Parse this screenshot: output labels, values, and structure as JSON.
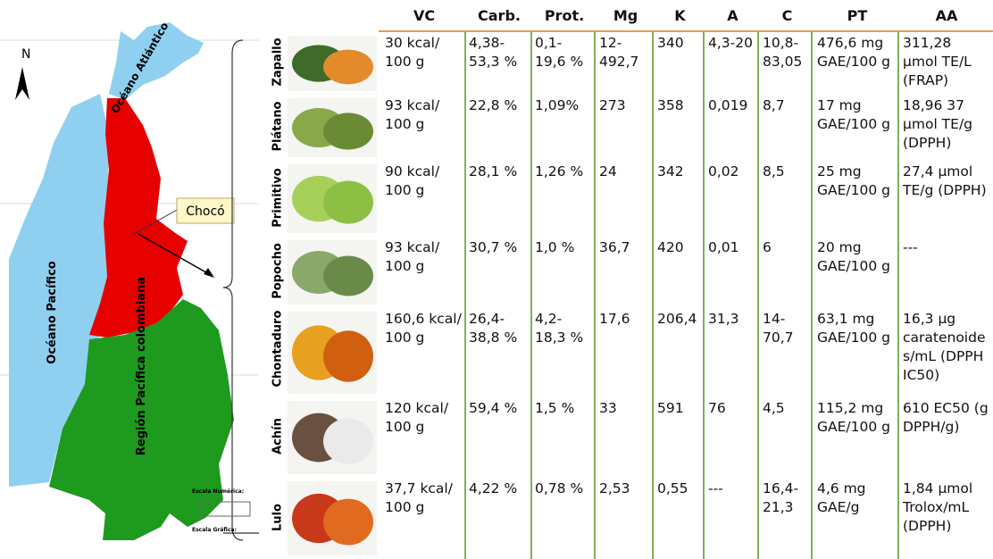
{
  "map": {
    "north": "N",
    "atlantic": "Océano Atlántico",
    "pacific": "Océano Pacífico",
    "choco": "Chocó",
    "region": "Región Pacífica colombiana",
    "scale_numeric": "Escala Numérica:",
    "scale_graphic": "Escala Gráfica:"
  },
  "table": {
    "headers": [
      "VC",
      "Carb.",
      "Prot.",
      "Mg",
      "K",
      "A",
      "C",
      "PT",
      "AA"
    ],
    "rows": [
      {
        "name": "Zapallo",
        "cells": [
          "30 kcal/ 100 g",
          "4,38-53,3 %",
          "0,1-19,6 %",
          "12-492,7",
          "340",
          "4,3-20",
          "10,8-83,05",
          "476,6 mg GAE/100 g",
          "311,28 µmol TE/L (FRAP)"
        ]
      },
      {
        "name": "Plátano",
        "cells": [
          "93 kcal/ 100 g",
          "22,8 %",
          "1,09%",
          "273",
          "358",
          "0,019",
          "8,7",
          "17 mg GAE/100 g",
          "18,96 37 µmol TE/g (DPPH)"
        ]
      },
      {
        "name": "Primitivo",
        "cells": [
          "90 kcal/ 100 g",
          "28,1 %",
          "1,26 %",
          "24",
          "342",
          "0,02",
          "8,5",
          "25 mg GAE/100 g",
          "27,4 µmol TE/g (DPPH)"
        ]
      },
      {
        "name": "Popocho",
        "cells": [
          "93 kcal/ 100 g",
          "30,7 %",
          "1,0 %",
          "36,7",
          "420",
          "0,01",
          "6",
          "20 mg GAE/100 g",
          "---"
        ]
      },
      {
        "name": "Chontaduro",
        "cells": [
          "160,6 kcal/ 100 g",
          "26,4-38,8 %",
          "4,2-18,3 %",
          "17,6",
          "206,4",
          "31,3",
          "14-70,7",
          "63,1 mg GAE/100 g",
          "16,3 µg caratenoides/mL (DPPH IC50)"
        ]
      },
      {
        "name": "Achín",
        "cells": [
          "120 kcal/ 100 g",
          "59,4 %",
          "1,5 %",
          "33",
          "591",
          "76",
          "4,5",
          "115,2 mg GAE/100 g",
          "610 EC50 (g DPPH/g)"
        ]
      },
      {
        "name": "Lulo",
        "cells": [
          "37,7 kcal/ 100 g",
          "4,22 %",
          "0,78 %",
          "2,53",
          "0,55",
          "---",
          "16,4-21,3",
          "4,6 mg GAE/g",
          "1,84 µmol Trolox/mL (DPPH)"
        ]
      }
    ]
  }
}
